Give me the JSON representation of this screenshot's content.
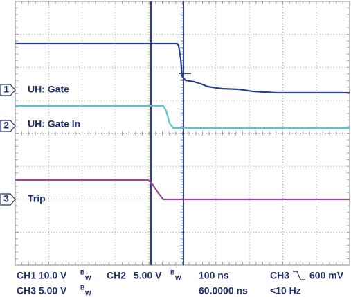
{
  "markers": [
    "1",
    "2",
    "3"
  ],
  "traces": [
    "UH: Gate",
    "UH: Gate In",
    "Trip"
  ],
  "readout": {
    "ch1": "CH1 10.0 V",
    "ch2_label": "CH2",
    "ch2": "5.00 V",
    "ch3": "CH3 5.00 V",
    "bw_b": "B",
    "bw_w": "W",
    "timebase": "100 ns",
    "position": "60.0000 ns",
    "trigger_source": "CH3",
    "trigger_level": "600 mV",
    "frequency": "<10 Hz"
  }
}
